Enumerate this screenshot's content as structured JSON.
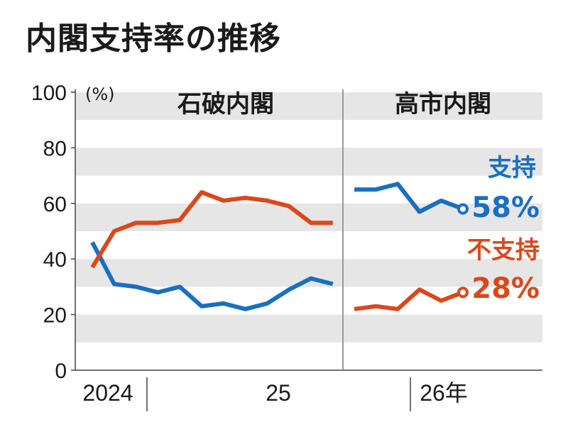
{
  "title": "内閣支持率の推移",
  "chart_data": {
    "type": "line",
    "ylabel": "(%)",
    "ylim": [
      0,
      100
    ],
    "yticks": [
      "0",
      "20",
      "40",
      "60",
      "80",
      "100"
    ],
    "grid": "horizontal alternating gray bands",
    "periods": [
      "石破内閣",
      "高市内閣"
    ],
    "x_tick_labels": [
      "2024",
      "25",
      "26年"
    ],
    "series": [
      {
        "name": "支持",
        "value_label": "58%",
        "color": "#1a6fbf",
        "segments": [
          [
            46,
            31,
            30,
            28,
            30,
            23,
            24,
            22,
            24,
            29,
            33,
            31
          ],
          [
            65,
            65,
            67,
            57,
            61,
            58
          ]
        ]
      },
      {
        "name": "不支持",
        "value_label": "28%",
        "color": "#d9481c",
        "segments": [
          [
            37,
            50,
            53,
            53,
            54,
            64,
            61,
            62,
            61,
            59,
            53,
            53
          ],
          [
            22,
            23,
            22,
            29,
            25,
            28
          ]
        ]
      }
    ]
  }
}
